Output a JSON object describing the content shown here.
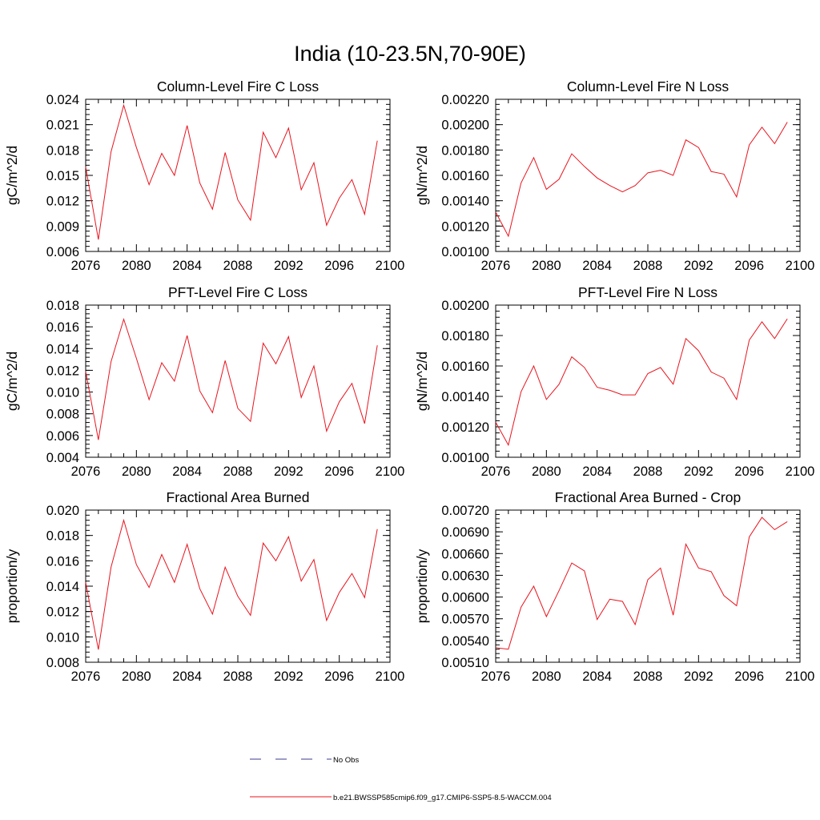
{
  "figure": {
    "title": "India (10-23.5N,70-90E)"
  },
  "chart_data": [
    {
      "type": "line",
      "title": "Column-Level Fire C Loss",
      "ylabel": "gC/m^2/d",
      "xlabel": "",
      "xlim": [
        2076,
        2100
      ],
      "ylim": [
        0.006,
        0.024
      ],
      "xticks": [
        2076,
        2080,
        2084,
        2088,
        2092,
        2096,
        2100
      ],
      "xtick_labels": [
        "2076",
        "2080",
        "2084",
        "2088",
        "2092",
        "2096",
        "2100"
      ],
      "yticks": [
        0.006,
        0.009,
        0.012,
        0.015,
        0.018,
        0.021,
        0.024
      ],
      "ytick_labels": [
        "0.006",
        "0.009",
        "0.012",
        "0.015",
        "0.018",
        "0.021",
        "0.024"
      ],
      "yminor_step": 0.0006,
      "series": [
        {
          "x": [
            2076,
            2077,
            2078,
            2079,
            2080,
            2081,
            2082,
            2083,
            2084,
            2085,
            2086,
            2087,
            2088,
            2089,
            2090,
            2091,
            2092,
            2093,
            2094,
            2095,
            2096,
            2097,
            2098,
            2099
          ],
          "values": [
            0.016,
            0.0074,
            0.0178,
            0.0233,
            0.0183,
            0.0139,
            0.0176,
            0.015,
            0.0209,
            0.0141,
            0.011,
            0.0177,
            0.0121,
            0.0097,
            0.0201,
            0.0171,
            0.0206,
            0.0133,
            0.0165,
            0.0091,
            0.0123,
            0.0145,
            0.0104,
            0.0191
          ]
        }
      ]
    },
    {
      "type": "line",
      "title": "Column-Level Fire N Loss",
      "ylabel": "gN/m^2/d",
      "xlabel": "",
      "xlim": [
        2076,
        2100
      ],
      "ylim": [
        0.001,
        0.0022
      ],
      "xticks": [
        2076,
        2080,
        2084,
        2088,
        2092,
        2096,
        2100
      ],
      "xtick_labels": [
        "2076",
        "2080",
        "2084",
        "2088",
        "2092",
        "2096",
        "2100"
      ],
      "yticks": [
        0.001,
        0.0012,
        0.0014,
        0.0016,
        0.0018,
        0.002,
        0.0022
      ],
      "ytick_labels": [
        "0.00100",
        "0.00120",
        "0.00140",
        "0.00160",
        "0.00180",
        "0.00200",
        "0.00220"
      ],
      "yminor_step": 4e-05,
      "series": [
        {
          "x": [
            2076,
            2077,
            2078,
            2079,
            2080,
            2081,
            2082,
            2083,
            2084,
            2085,
            2086,
            2087,
            2088,
            2089,
            2090,
            2091,
            2092,
            2093,
            2094,
            2095,
            2096,
            2097,
            2098,
            2099
          ],
          "values": [
            0.00131,
            0.00112,
            0.00154,
            0.00174,
            0.00149,
            0.00157,
            0.00177,
            0.00167,
            0.00158,
            0.00152,
            0.00147,
            0.00152,
            0.00162,
            0.00164,
            0.0016,
            0.00188,
            0.00182,
            0.00163,
            0.00161,
            0.00143,
            0.00184,
            0.00198,
            0.00185,
            0.00202
          ]
        }
      ]
    },
    {
      "type": "line",
      "title": "PFT-Level Fire C Loss",
      "ylabel": "gC/m^2/d",
      "xlabel": "",
      "xlim": [
        2076,
        2100
      ],
      "ylim": [
        0.004,
        0.018
      ],
      "xticks": [
        2076,
        2080,
        2084,
        2088,
        2092,
        2096,
        2100
      ],
      "xtick_labels": [
        "2076",
        "2080",
        "2084",
        "2088",
        "2092",
        "2096",
        "2100"
      ],
      "yticks": [
        0.004,
        0.006,
        0.008,
        0.01,
        0.012,
        0.014,
        0.016,
        0.018
      ],
      "ytick_labels": [
        "0.004",
        "0.006",
        "0.008",
        "0.010",
        "0.012",
        "0.014",
        "0.016",
        "0.018"
      ],
      "yminor_step": 0.0004,
      "series": [
        {
          "x": [
            2076,
            2077,
            2078,
            2079,
            2080,
            2081,
            2082,
            2083,
            2084,
            2085,
            2086,
            2087,
            2088,
            2089,
            2090,
            2091,
            2092,
            2093,
            2094,
            2095,
            2096,
            2097,
            2098,
            2099
          ],
          "values": [
            0.0119,
            0.0056,
            0.0128,
            0.0167,
            0.0131,
            0.0093,
            0.0127,
            0.011,
            0.0152,
            0.0101,
            0.0081,
            0.0129,
            0.0085,
            0.0073,
            0.0145,
            0.0126,
            0.0151,
            0.0095,
            0.0124,
            0.0064,
            0.0091,
            0.0108,
            0.0071,
            0.0143
          ]
        }
      ]
    },
    {
      "type": "line",
      "title": "PFT-Level Fire N Loss",
      "ylabel": "gN/m^2/d",
      "xlabel": "",
      "xlim": [
        2076,
        2100
      ],
      "ylim": [
        0.001,
        0.002
      ],
      "xticks": [
        2076,
        2080,
        2084,
        2088,
        2092,
        2096,
        2100
      ],
      "xtick_labels": [
        "2076",
        "2080",
        "2084",
        "2088",
        "2092",
        "2096",
        "2100"
      ],
      "yticks": [
        0.001,
        0.0012,
        0.0014,
        0.0016,
        0.0018,
        0.002
      ],
      "ytick_labels": [
        "0.00100",
        "0.00120",
        "0.00140",
        "0.00160",
        "0.00180",
        "0.00200"
      ],
      "yminor_step": 4e-05,
      "series": [
        {
          "x": [
            2076,
            2077,
            2078,
            2079,
            2080,
            2081,
            2082,
            2083,
            2084,
            2085,
            2086,
            2087,
            2088,
            2089,
            2090,
            2091,
            2092,
            2093,
            2094,
            2095,
            2096,
            2097,
            2098,
            2099
          ],
          "values": [
            0.00123,
            0.00108,
            0.00143,
            0.0016,
            0.00138,
            0.00148,
            0.00166,
            0.00159,
            0.00146,
            0.00144,
            0.00141,
            0.00141,
            0.00155,
            0.00159,
            0.00148,
            0.00178,
            0.0017,
            0.00156,
            0.00152,
            0.00138,
            0.00177,
            0.00189,
            0.00178,
            0.00191
          ]
        }
      ]
    },
    {
      "type": "line",
      "title": "Fractional Area Burned",
      "ylabel": "proportion/y",
      "xlabel": "",
      "xlim": [
        2076,
        2100
      ],
      "ylim": [
        0.008,
        0.02
      ],
      "xticks": [
        2076,
        2080,
        2084,
        2088,
        2092,
        2096,
        2100
      ],
      "xtick_labels": [
        "2076",
        "2080",
        "2084",
        "2088",
        "2092",
        "2096",
        "2100"
      ],
      "yticks": [
        0.008,
        0.01,
        0.012,
        0.014,
        0.016,
        0.018,
        0.02
      ],
      "ytick_labels": [
        "0.008",
        "0.010",
        "0.012",
        "0.014",
        "0.016",
        "0.018",
        "0.020"
      ],
      "yminor_step": 0.0004,
      "series": [
        {
          "x": [
            2076,
            2077,
            2078,
            2079,
            2080,
            2081,
            2082,
            2083,
            2084,
            2085,
            2086,
            2087,
            2088,
            2089,
            2090,
            2091,
            2092,
            2093,
            2094,
            2095,
            2096,
            2097,
            2098,
            2099
          ],
          "values": [
            0.0143,
            0.009,
            0.0155,
            0.0192,
            0.0157,
            0.0139,
            0.0165,
            0.0143,
            0.0173,
            0.0138,
            0.0118,
            0.0155,
            0.0132,
            0.0117,
            0.0174,
            0.016,
            0.0179,
            0.0144,
            0.0161,
            0.0113,
            0.0135,
            0.015,
            0.0131,
            0.0185
          ]
        }
      ]
    },
    {
      "type": "line",
      "title": "Fractional Area Burned - Crop",
      "ylabel": "proportion/y",
      "xlabel": "",
      "xlim": [
        2076,
        2100
      ],
      "ylim": [
        0.0051,
        0.0072
      ],
      "xticks": [
        2076,
        2080,
        2084,
        2088,
        2092,
        2096,
        2100
      ],
      "xtick_labels": [
        "2076",
        "2080",
        "2084",
        "2088",
        "2092",
        "2096",
        "2100"
      ],
      "yticks": [
        0.0051,
        0.0054,
        0.0057,
        0.006,
        0.0063,
        0.0066,
        0.0069,
        0.0072
      ],
      "ytick_labels": [
        "0.00510",
        "0.00540",
        "0.00570",
        "0.00600",
        "0.00630",
        "0.00660",
        "0.00690",
        "0.00720"
      ],
      "yminor_step": 6e-05,
      "series": [
        {
          "x": [
            2076,
            2077,
            2078,
            2079,
            2080,
            2081,
            2082,
            2083,
            2084,
            2085,
            2086,
            2087,
            2088,
            2089,
            2090,
            2091,
            2092,
            2093,
            2094,
            2095,
            2096,
            2097,
            2098,
            2099
          ],
          "values": [
            0.0053,
            0.00528,
            0.00586,
            0.00615,
            0.00573,
            0.00609,
            0.00647,
            0.00636,
            0.00569,
            0.00597,
            0.00594,
            0.00562,
            0.00624,
            0.0064,
            0.00575,
            0.00673,
            0.0064,
            0.00635,
            0.00602,
            0.00588,
            0.00683,
            0.0071,
            0.00693,
            0.00704
          ]
        }
      ]
    }
  ],
  "legend": {
    "obs_label": "No Obs",
    "model_label": "b.e21.BWSSP585cmip6.f09_g17.CMIP6-SSP5-8.5-WACCM.004"
  },
  "colors": {
    "model_line": "#e8141e",
    "obs_line": "#3b3b8f",
    "axis": "#000000"
  }
}
